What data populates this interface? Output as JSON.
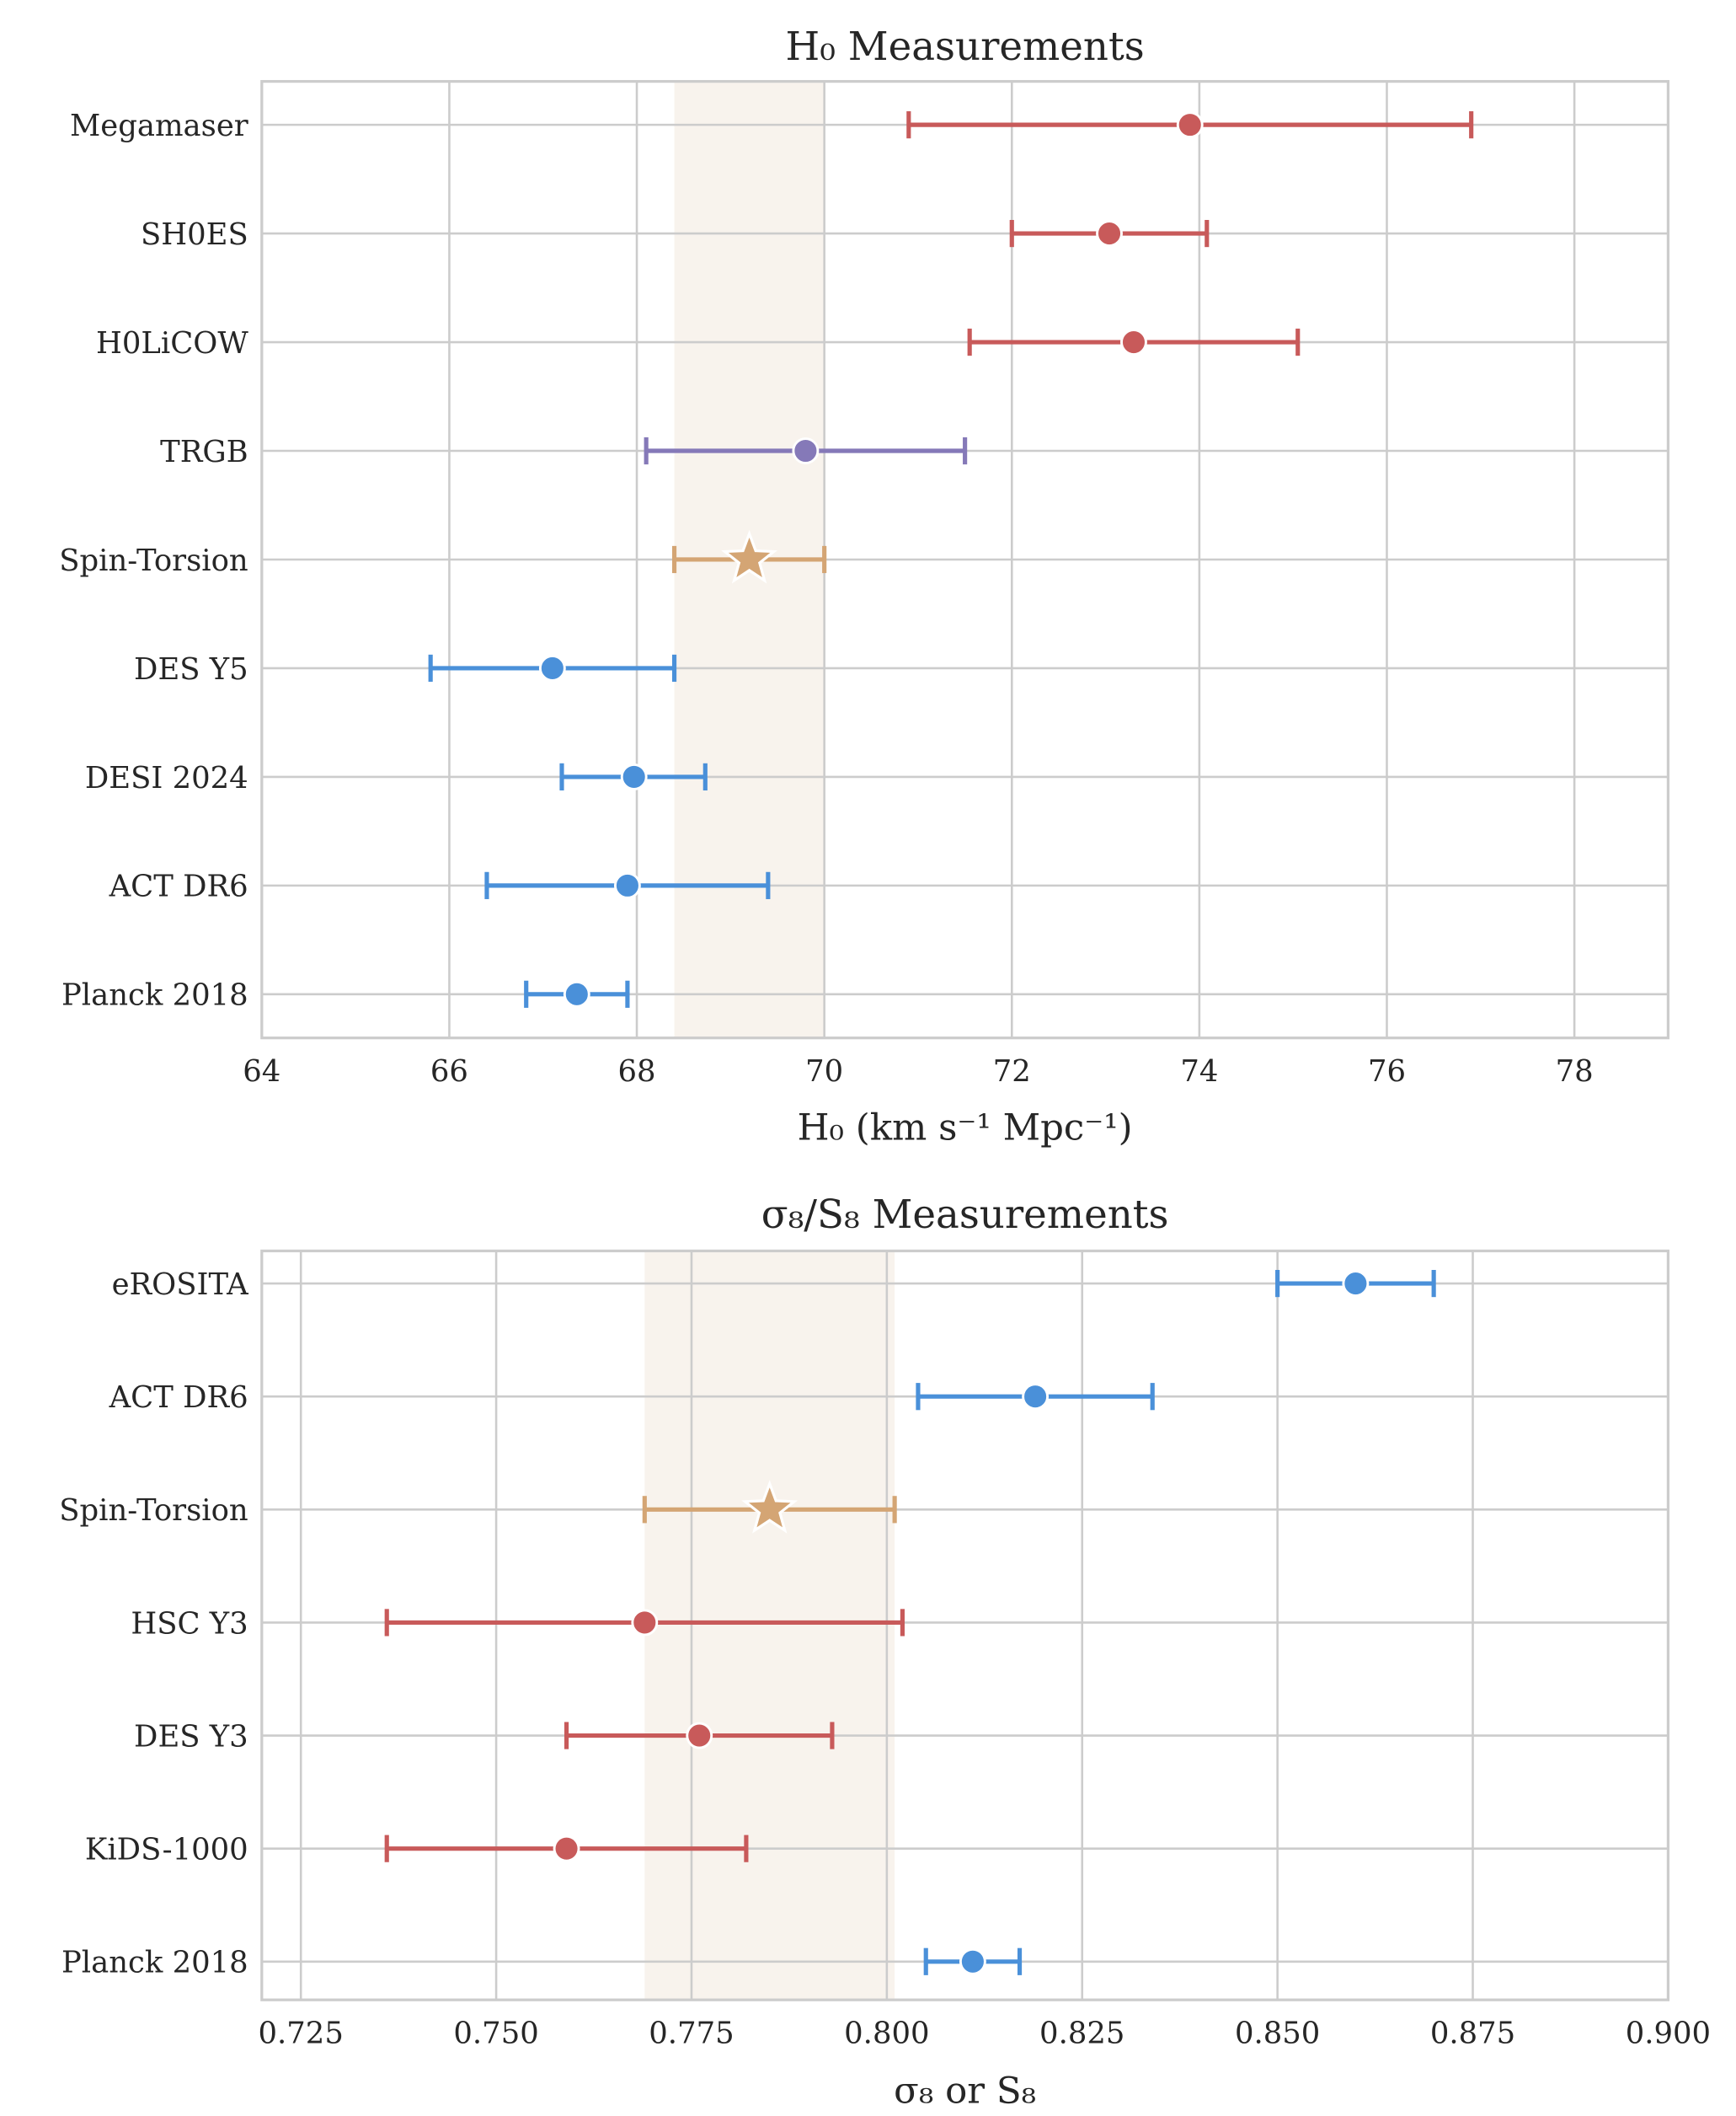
{
  "colors": {
    "early": "#4a90d9",
    "late": "#c85a5a",
    "trgb": "#8579b8",
    "model": "#d4a574",
    "band": "#f8f3ed",
    "grid": "#cccccc"
  },
  "chart_data": [
    {
      "type": "errorbar",
      "title": "H₀ Measurements",
      "xlabel": "H₀ (km s⁻¹ Mpc⁻¹)",
      "xlim": [
        64,
        79
      ],
      "xticks": [
        64,
        66,
        68,
        70,
        72,
        74,
        76,
        78
      ],
      "grid": true,
      "band": [
        68.4,
        70.0
      ],
      "points": [
        {
          "label": "Megamaser",
          "value": 73.9,
          "lo": 70.9,
          "hi": 76.9,
          "color": "late",
          "marker": "circle"
        },
        {
          "label": "SH0ES",
          "value": 73.04,
          "lo": 72.0,
          "hi": 74.08,
          "color": "late",
          "marker": "circle"
        },
        {
          "label": "H0LiCOW",
          "value": 73.3,
          "lo": 71.55,
          "hi": 75.05,
          "color": "late",
          "marker": "circle"
        },
        {
          "label": "TRGB",
          "value": 69.8,
          "lo": 68.1,
          "hi": 71.5,
          "color": "trgb",
          "marker": "circle"
        },
        {
          "label": "Spin-Torsion",
          "value": 69.2,
          "lo": 68.4,
          "hi": 70.0,
          "color": "model",
          "marker": "star"
        },
        {
          "label": "DES Y5",
          "value": 67.1,
          "lo": 65.8,
          "hi": 68.4,
          "color": "early",
          "marker": "circle"
        },
        {
          "label": "DESI 2024",
          "value": 67.97,
          "lo": 67.2,
          "hi": 68.73,
          "color": "early",
          "marker": "circle"
        },
        {
          "label": "ACT DR6",
          "value": 67.9,
          "lo": 66.4,
          "hi": 69.4,
          "color": "early",
          "marker": "circle"
        },
        {
          "label": "Planck 2018",
          "value": 67.36,
          "lo": 66.82,
          "hi": 67.9,
          "color": "early",
          "marker": "circle"
        }
      ]
    },
    {
      "type": "errorbar",
      "title": "σ₈/S₈ Measurements",
      "xlabel": "σ₈ or S₈",
      "xlim": [
        0.72,
        0.9
      ],
      "xticks": [
        "0.725",
        "0.750",
        "0.775",
        "0.800",
        "0.825",
        "0.850",
        "0.875",
        "0.900"
      ],
      "grid": true,
      "band": [
        0.769,
        0.801
      ],
      "points": [
        {
          "label": "eROSITA",
          "value": 0.86,
          "lo": 0.85,
          "hi": 0.87,
          "color": "early",
          "marker": "circle"
        },
        {
          "label": "ACT DR6",
          "value": 0.819,
          "lo": 0.804,
          "hi": 0.834,
          "color": "early",
          "marker": "circle"
        },
        {
          "label": "Spin-Torsion",
          "value": 0.785,
          "lo": 0.769,
          "hi": 0.801,
          "color": "model",
          "marker": "star"
        },
        {
          "label": "HSC Y3",
          "value": 0.769,
          "lo": 0.736,
          "hi": 0.802,
          "color": "late",
          "marker": "circle"
        },
        {
          "label": "DES Y3",
          "value": 0.776,
          "lo": 0.759,
          "hi": 0.793,
          "color": "late",
          "marker": "circle"
        },
        {
          "label": "KiDS-1000",
          "value": 0.759,
          "lo": 0.736,
          "hi": 0.782,
          "color": "late",
          "marker": "circle"
        },
        {
          "label": "Planck 2018",
          "value": 0.811,
          "lo": 0.805,
          "hi": 0.817,
          "color": "early",
          "marker": "circle"
        }
      ]
    }
  ]
}
